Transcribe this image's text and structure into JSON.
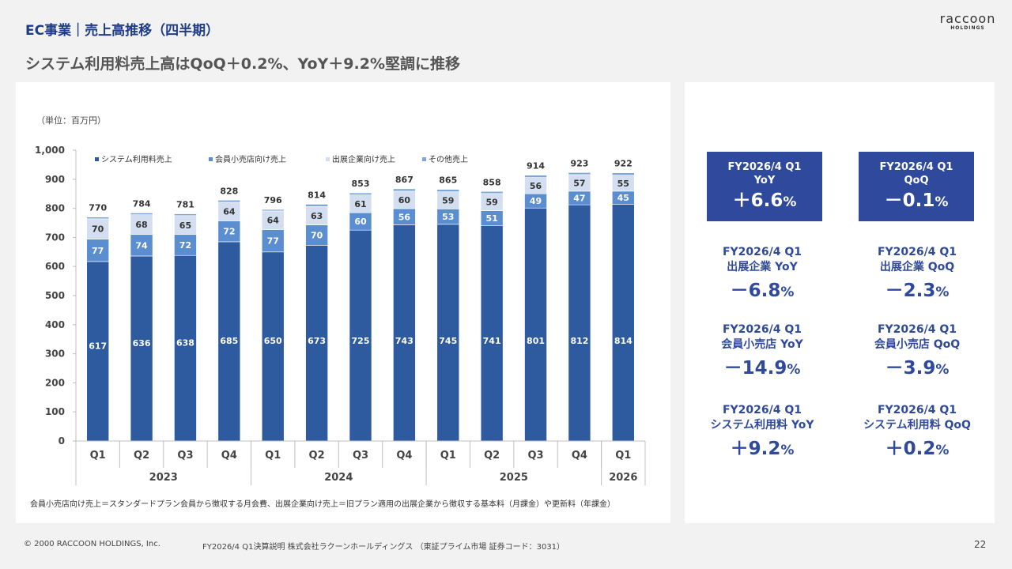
{
  "header": {
    "title": "EC事業｜売上高推移（四半期）",
    "subtitle": "システム利用料売上高はQoQ＋0.2%、YoY＋9.2%堅調に推移"
  },
  "logo": {
    "name": "raccoon",
    "sub": "HOLDINGS"
  },
  "unit_label": "（単位：百万円）",
  "note": "会員小売店向け売上＝スタンダードプラン会員から徴収する月会費、出展企業向け売上＝旧プラン適用の出展企業から徴収する基本料（月課金）や更新料（年課金）",
  "chart_data": {
    "type": "bar",
    "stacked": true,
    "categories": [
      "Q1",
      "Q2",
      "Q3",
      "Q4",
      "Q1",
      "Q2",
      "Q3",
      "Q4",
      "Q1",
      "Q2",
      "Q3",
      "Q4",
      "Q1"
    ],
    "years": [
      {
        "label": "2023",
        "span": 4
      },
      {
        "label": "2024",
        "span": 4
      },
      {
        "label": "2025",
        "span": 4
      },
      {
        "label": "2026",
        "span": 1
      }
    ],
    "series": [
      {
        "name": "システム利用料売上",
        "color": "#2e5aa0",
        "values": [
          617,
          636,
          638,
          685,
          650,
          673,
          725,
          743,
          745,
          741,
          801,
          812,
          814
        ]
      },
      {
        "name": "会員小売店向け売上",
        "color": "#5b8ed0",
        "values": [
          77,
          74,
          72,
          72,
          77,
          70,
          60,
          56,
          53,
          51,
          49,
          47,
          45
        ]
      },
      {
        "name": "出展企業向け売上",
        "color": "#d3dff0",
        "values": [
          70,
          68,
          65,
          64,
          64,
          63,
          61,
          60,
          59,
          59,
          56,
          57,
          55
        ]
      },
      {
        "name": "その他売上",
        "color": "#7ea7d8",
        "values": [
          6,
          6,
          6,
          7,
          5,
          8,
          7,
          8,
          8,
          7,
          8,
          7,
          8
        ]
      }
    ],
    "totals": [
      770,
      784,
      781,
      828,
      796,
      814,
      853,
      867,
      865,
      858,
      914,
      923,
      922
    ],
    "ylim": [
      0,
      1000
    ],
    "yticks": [
      0,
      100,
      200,
      300,
      400,
      500,
      600,
      700,
      800,
      900,
      1000
    ],
    "ytick_labels": [
      "0",
      "100",
      "200",
      "300",
      "400",
      "500",
      "600",
      "700",
      "800",
      "900",
      "1,000"
    ],
    "legend_position": "top",
    "grid": false
  },
  "kpis": [
    {
      "label": "FY2026/4 Q1\nYoY",
      "sign": "＋",
      "value": "6.6",
      "unit": "%",
      "highlight": true
    },
    {
      "label": "FY2026/4 Q1\nQoQ",
      "sign": "－",
      "value": "0.1",
      "unit": "%",
      "highlight": true
    },
    {
      "label": "FY2026/4 Q1\n出展企業 YoY",
      "sign": "－",
      "value": "6.8",
      "unit": "%",
      "highlight": false
    },
    {
      "label": "FY2026/4 Q1\n出展企業 QoQ",
      "sign": "－",
      "value": "2.3",
      "unit": "%",
      "highlight": false
    },
    {
      "label": "FY2026/4 Q1\n会員小売店 YoY",
      "sign": "－",
      "value": "14.9",
      "unit": "%",
      "highlight": false
    },
    {
      "label": "FY2026/4 Q1\n会員小売店 QoQ",
      "sign": "－",
      "value": "3.9",
      "unit": "%",
      "highlight": false
    },
    {
      "label": "FY2026/4 Q1\nシステム利用料 YoY",
      "sign": "＋",
      "value": "9.2",
      "unit": "%",
      "highlight": false
    },
    {
      "label": "FY2026/4 Q1\nシステム利用料 QoQ",
      "sign": "＋",
      "value": "0.2",
      "unit": "%",
      "highlight": false
    }
  ],
  "footer": {
    "copyright": "© 2000 RACCOON HOLDINGS, Inc.",
    "info": "FY2026/4 Q1決算説明 株式会社ラクーンホールディングス （東証プライム市場 証券コード：3031）",
    "page": "22"
  }
}
